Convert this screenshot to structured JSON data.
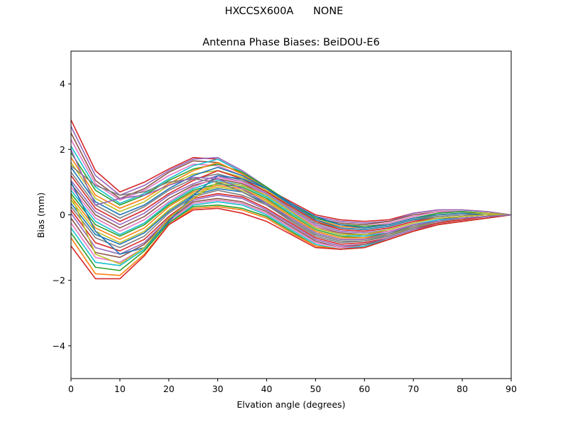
{
  "figure": {
    "suptitle": "HXCCSX600A      NONE"
  },
  "chart_data": {
    "type": "line",
    "title": "Antenna Phase Biases: BeiDOU-E6",
    "xlabel": "Elvation angle (degrees)",
    "ylabel": "Bias (mm)",
    "xlim": [
      0,
      90
    ],
    "ylim": [
      -5,
      5
    ],
    "xticks": [
      0,
      10,
      20,
      30,
      40,
      50,
      60,
      70,
      80,
      90
    ],
    "yticks": [
      -4,
      -2,
      0,
      2,
      4
    ],
    "grid": false,
    "legend": "none",
    "x": [
      0,
      5,
      10,
      15,
      20,
      25,
      30,
      35,
      40,
      45,
      50,
      55,
      60,
      65,
      70,
      75,
      80,
      85,
      90
    ],
    "series": [
      {
        "color": "#d62728",
        "values": [
          2.9,
          1.35,
          0.7,
          1.0,
          1.4,
          1.75,
          1.7,
          1.3,
          0.8,
          0.4,
          0.0,
          -0.15,
          -0.2,
          -0.15,
          0.05,
          0.15,
          0.15,
          0.1,
          0.0
        ]
      },
      {
        "color": "#9467bd",
        "values": [
          2.7,
          1.2,
          0.6,
          0.9,
          1.35,
          1.7,
          1.75,
          1.35,
          0.85,
          0.35,
          -0.05,
          -0.2,
          -0.25,
          -0.2,
          0.05,
          0.15,
          0.15,
          0.1,
          0.0
        ]
      },
      {
        "color": "#8c564b",
        "values": [
          2.5,
          1.05,
          0.5,
          0.8,
          1.3,
          1.65,
          1.6,
          1.25,
          0.8,
          0.3,
          -0.1,
          -0.25,
          -0.3,
          -0.2,
          0.0,
          0.1,
          0.1,
          0.05,
          0.0
        ]
      },
      {
        "color": "#e377c2",
        "values": [
          2.3,
          0.95,
          0.45,
          0.75,
          1.2,
          1.55,
          1.5,
          1.2,
          0.75,
          0.3,
          -0.1,
          -0.3,
          -0.35,
          -0.25,
          -0.05,
          0.1,
          0.1,
          0.05,
          0.0
        ]
      },
      {
        "color": "#17becf",
        "values": [
          2.1,
          0.85,
          0.35,
          0.65,
          1.1,
          1.5,
          1.7,
          1.3,
          0.8,
          0.3,
          -0.15,
          -0.35,
          -0.4,
          -0.3,
          -0.1,
          0.05,
          0.1,
          0.05,
          0.0
        ]
      },
      {
        "color": "#2ca02c",
        "values": [
          1.9,
          0.75,
          0.3,
          0.6,
          1.05,
          1.4,
          1.55,
          1.3,
          0.85,
          0.35,
          -0.1,
          -0.3,
          -0.35,
          -0.3,
          -0.1,
          0.05,
          0.1,
          0.05,
          0.0
        ]
      },
      {
        "color": "#ff7f0e",
        "values": [
          1.75,
          0.6,
          0.2,
          0.5,
          0.95,
          1.35,
          1.6,
          1.25,
          0.8,
          0.3,
          -0.15,
          -0.35,
          -0.4,
          -0.3,
          -0.1,
          0.0,
          0.05,
          0.05,
          0.0
        ]
      },
      {
        "color": "#bcbd22",
        "values": [
          1.6,
          0.5,
          0.1,
          0.4,
          0.9,
          1.25,
          1.35,
          1.15,
          0.75,
          0.25,
          -0.2,
          -0.4,
          -0.45,
          -0.35,
          -0.15,
          0.0,
          0.05,
          0.05,
          0.0
        ]
      },
      {
        "color": "#1f77b4",
        "values": [
          1.45,
          0.4,
          0.0,
          0.3,
          0.8,
          1.2,
          1.45,
          1.2,
          0.8,
          0.3,
          -0.15,
          -0.4,
          -0.45,
          -0.35,
          -0.15,
          -0.05,
          0.0,
          0.0,
          0.0
        ]
      },
      {
        "color": "#7f7f7f",
        "values": [
          1.3,
          0.3,
          -0.1,
          0.25,
          0.75,
          1.1,
          1.25,
          1.05,
          0.7,
          0.2,
          -0.25,
          -0.45,
          -0.5,
          -0.4,
          -0.2,
          -0.05,
          0.0,
          0.0,
          0.0
        ]
      },
      {
        "color": "#d62728",
        "values": [
          1.2,
          0.2,
          -0.2,
          0.15,
          0.65,
          1.05,
          1.35,
          1.1,
          0.7,
          0.25,
          -0.2,
          -0.45,
          -0.5,
          -0.4,
          -0.2,
          -0.1,
          -0.05,
          0.0,
          0.0
        ]
      },
      {
        "color": "#9467bd",
        "values": [
          1.05,
          0.1,
          -0.3,
          0.05,
          0.6,
          0.95,
          1.2,
          1.0,
          0.65,
          0.15,
          -0.3,
          -0.5,
          -0.55,
          -0.45,
          -0.25,
          -0.1,
          -0.05,
          0.0,
          0.0
        ]
      },
      {
        "color": "#8c564b",
        "values": [
          0.95,
          0.0,
          -0.4,
          -0.05,
          0.5,
          0.9,
          1.1,
          0.95,
          0.6,
          0.1,
          -0.35,
          -0.55,
          -0.6,
          -0.5,
          -0.3,
          -0.15,
          -0.05,
          0.0,
          0.0
        ]
      },
      {
        "color": "#e377c2",
        "values": [
          0.85,
          -0.1,
          -0.5,
          -0.15,
          0.4,
          0.85,
          1.15,
          1.0,
          0.6,
          0.1,
          -0.35,
          -0.6,
          -0.65,
          -0.5,
          -0.3,
          -0.15,
          -0.1,
          -0.05,
          0.0
        ]
      },
      {
        "color": "#17becf",
        "values": [
          0.75,
          -0.2,
          -0.6,
          -0.25,
          0.35,
          0.8,
          1.05,
          0.9,
          0.55,
          0.05,
          -0.4,
          -0.6,
          -0.65,
          -0.55,
          -0.3,
          -0.15,
          -0.1,
          -0.05,
          0.0
        ]
      },
      {
        "color": "#2ca02c",
        "values": [
          0.65,
          -0.3,
          -0.65,
          -0.3,
          0.3,
          0.75,
          0.95,
          0.85,
          0.5,
          0.0,
          -0.45,
          -0.65,
          -0.7,
          -0.55,
          -0.35,
          -0.2,
          -0.1,
          -0.05,
          0.0
        ]
      },
      {
        "color": "#ff7f0e",
        "values": [
          0.55,
          -0.4,
          -0.75,
          -0.4,
          0.25,
          0.7,
          0.9,
          0.8,
          0.45,
          -0.05,
          -0.5,
          -0.7,
          -0.7,
          -0.6,
          -0.35,
          -0.2,
          -0.1,
          -0.05,
          0.0
        ]
      },
      {
        "color": "#bcbd22",
        "values": [
          0.45,
          -0.5,
          -0.85,
          -0.5,
          0.15,
          0.65,
          0.85,
          0.75,
          0.4,
          -0.1,
          -0.55,
          -0.75,
          -0.75,
          -0.6,
          -0.4,
          -0.2,
          -0.15,
          -0.05,
          0.0
        ]
      },
      {
        "color": "#1f77b4",
        "values": [
          0.35,
          -0.6,
          -0.9,
          -0.55,
          0.1,
          0.6,
          0.8,
          0.7,
          0.35,
          -0.15,
          -0.6,
          -0.8,
          -0.8,
          -0.65,
          -0.4,
          -0.25,
          -0.15,
          -0.05,
          0.0
        ]
      },
      {
        "color": "#7f7f7f",
        "values": [
          0.25,
          -0.7,
          -1.0,
          -0.65,
          0.05,
          0.55,
          0.75,
          0.6,
          0.3,
          -0.2,
          -0.65,
          -0.85,
          -0.8,
          -0.65,
          -0.4,
          -0.25,
          -0.15,
          -0.05,
          0.0
        ]
      },
      {
        "color": "#d62728",
        "values": [
          0.15,
          -0.85,
          -1.1,
          -0.75,
          -0.05,
          0.5,
          0.65,
          0.55,
          0.2,
          -0.25,
          -0.7,
          -0.9,
          -0.85,
          -0.7,
          -0.45,
          -0.25,
          -0.15,
          -0.05,
          0.0
        ]
      },
      {
        "color": "#9467bd",
        "values": [
          0.05,
          -1.0,
          -1.2,
          -0.85,
          -0.1,
          0.45,
          0.6,
          0.5,
          0.15,
          -0.3,
          -0.75,
          -0.95,
          -0.9,
          -0.7,
          -0.45,
          -0.3,
          -0.2,
          -0.1,
          0.0
        ]
      },
      {
        "color": "#8c564b",
        "values": [
          -0.1,
          -1.15,
          -1.3,
          -0.9,
          -0.15,
          0.4,
          0.5,
          0.4,
          0.1,
          -0.35,
          -0.8,
          -1.0,
          -0.9,
          -0.75,
          -0.5,
          -0.3,
          -0.2,
          -0.1,
          0.0
        ]
      },
      {
        "color": "#e377c2",
        "values": [
          -0.25,
          -1.3,
          -1.45,
          -1.0,
          -0.2,
          0.35,
          0.45,
          0.35,
          0.05,
          -0.4,
          -0.85,
          -1.0,
          -0.95,
          -0.75,
          -0.5,
          -0.3,
          -0.2,
          -0.1,
          0.0
        ]
      },
      {
        "color": "#17becf",
        "values": [
          -0.4,
          -1.45,
          -1.55,
          -1.05,
          -0.25,
          0.3,
          0.4,
          0.3,
          0.0,
          -0.45,
          -0.9,
          -1.05,
          -0.95,
          -0.75,
          -0.5,
          -0.3,
          -0.2,
          -0.1,
          0.0
        ]
      },
      {
        "color": "#2ca02c",
        "values": [
          -0.55,
          -1.6,
          -1.7,
          -1.1,
          -0.25,
          0.25,
          0.3,
          0.2,
          -0.05,
          -0.5,
          -0.95,
          -1.05,
          -1.0,
          -0.75,
          -0.5,
          -0.3,
          -0.2,
          -0.1,
          0.0
        ]
      },
      {
        "color": "#ff7f0e",
        "values": [
          -0.7,
          -1.8,
          -1.85,
          -1.2,
          -0.3,
          0.2,
          0.25,
          0.15,
          -0.1,
          -0.55,
          -0.95,
          -1.05,
          -1.0,
          -0.75,
          -0.5,
          -0.3,
          -0.2,
          -0.1,
          0.0
        ]
      },
      {
        "color": "#d62728",
        "values": [
          -0.95,
          -1.95,
          -1.95,
          -1.25,
          -0.3,
          0.15,
          0.2,
          0.05,
          -0.2,
          -0.6,
          -1.0,
          -1.05,
          -1.0,
          -0.75,
          -0.5,
          -0.3,
          -0.2,
          -0.1,
          0.0
        ]
      },
      {
        "color": "#1f77b4",
        "values": [
          1.0,
          -0.5,
          -1.2,
          -1.0,
          -0.2,
          0.6,
          1.2,
          1.1,
          0.8,
          0.35,
          -0.05,
          -0.3,
          -0.4,
          -0.3,
          -0.1,
          0.0,
          0.05,
          0.0,
          0.0
        ]
      },
      {
        "color": "#bcbd22",
        "values": [
          0.6,
          -1.2,
          -1.5,
          -1.0,
          -0.1,
          0.5,
          1.0,
          0.9,
          0.6,
          0.1,
          -0.4,
          -0.6,
          -0.6,
          -0.45,
          -0.25,
          -0.1,
          -0.05,
          0.0,
          0.0
        ]
      },
      {
        "color": "#7f7f7f",
        "values": [
          1.5,
          0.9,
          0.6,
          0.7,
          1.0,
          1.1,
          1.0,
          0.7,
          0.3,
          -0.15,
          -0.6,
          -0.8,
          -0.8,
          -0.6,
          -0.35,
          -0.2,
          -0.1,
          -0.05,
          0.0
        ]
      },
      {
        "color": "#9467bd",
        "values": [
          2.0,
          0.3,
          0.5,
          0.6,
          0.9,
          1.15,
          1.1,
          0.8,
          0.35,
          -0.1,
          -0.55,
          -0.75,
          -0.75,
          -0.55,
          -0.3,
          -0.2,
          -0.1,
          -0.05,
          0.0
        ]
      }
    ]
  }
}
